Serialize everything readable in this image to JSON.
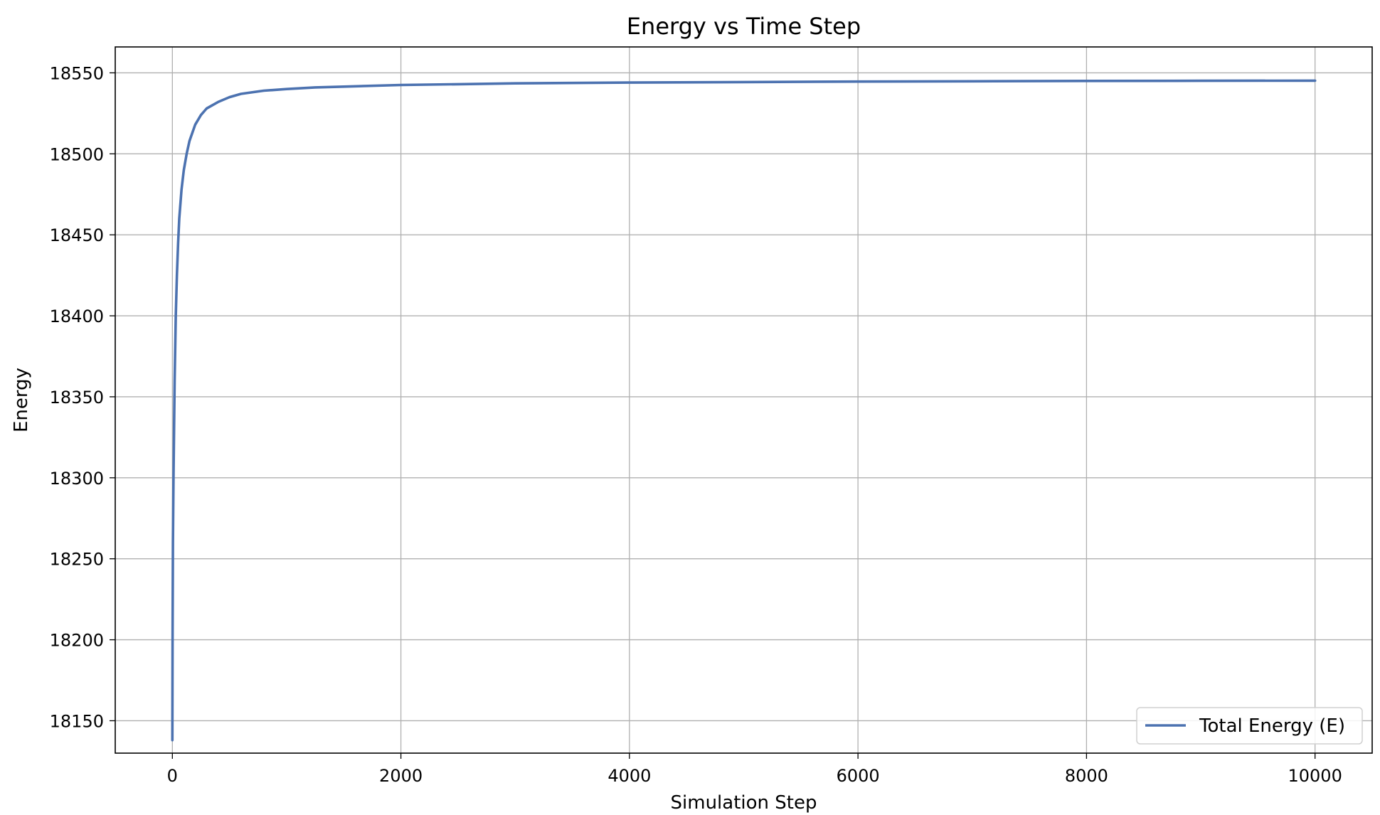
{
  "chart_data": {
    "type": "line",
    "title": "Energy vs Time Step",
    "xlabel": "Simulation Step",
    "ylabel": "Energy",
    "xlim": [
      -500,
      10500
    ],
    "ylim": [
      18130,
      18566
    ],
    "xticks": [
      0,
      2000,
      4000,
      6000,
      8000,
      10000
    ],
    "xtick_labels": [
      "0",
      "2000",
      "4000",
      "6000",
      "8000",
      "10000"
    ],
    "yticks": [
      18150,
      18200,
      18250,
      18300,
      18350,
      18400,
      18450,
      18500,
      18550
    ],
    "ytick_labels": [
      "18150",
      "18200",
      "18250",
      "18300",
      "18350",
      "18400",
      "18450",
      "18500",
      "18550"
    ],
    "grid": true,
    "legend_position": "lower-right",
    "series": [
      {
        "name": "Total Energy (E)",
        "color": "#4c72b0",
        "x": [
          0,
          2,
          5,
          10,
          15,
          20,
          30,
          40,
          50,
          60,
          80,
          100,
          125,
          150,
          200,
          250,
          300,
          400,
          500,
          600,
          800,
          1000,
          1250,
          1500,
          2000,
          2500,
          3000,
          4000,
          5000,
          6000,
          7000,
          8000,
          9000,
          10000
        ],
        "y": [
          18138,
          18200,
          18260,
          18300,
          18330,
          18360,
          18400,
          18425,
          18445,
          18460,
          18478,
          18490,
          18500,
          18508,
          18518,
          18524,
          18528,
          18532,
          18535,
          18537,
          18539,
          18540,
          18541,
          18541.5,
          18542.5,
          18543,
          18543.5,
          18544,
          18544.3,
          18544.6,
          18544.8,
          18545,
          18545.1,
          18545.2
        ]
      }
    ]
  }
}
